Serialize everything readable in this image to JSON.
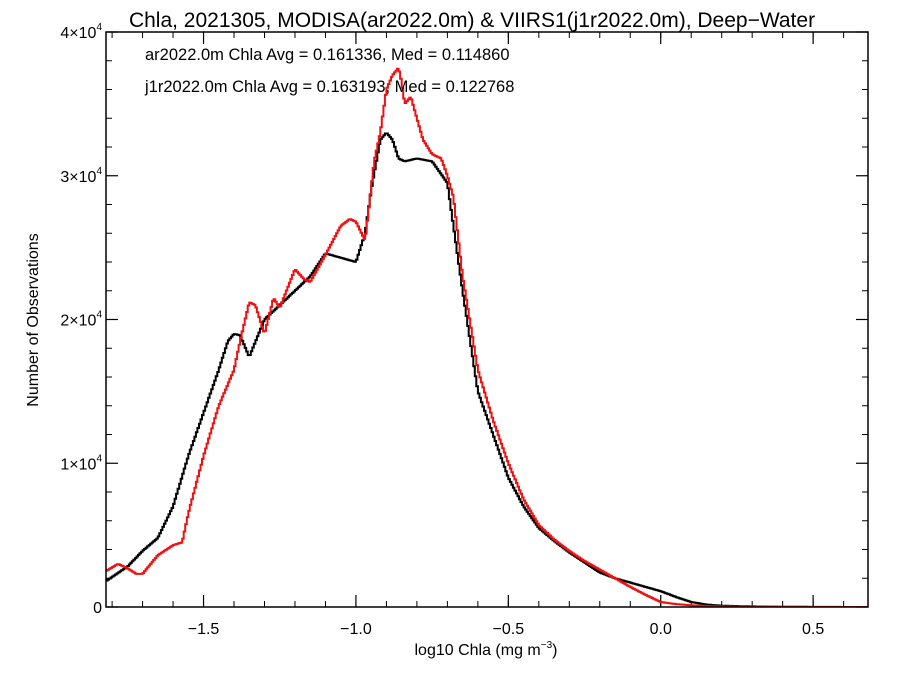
{
  "chart_data": {
    "type": "line",
    "title": "Chla, 2021305, MODISA(ar2022.0m) & VIIRS1(j1r2022.0m), Deep−Water",
    "xlabel": "log10 Chla (mg m",
    "xlabel_sup": "−3",
    "xlabel_tail": ")",
    "ylabel": "Number of Observations",
    "xlim": [
      -1.82,
      0.68
    ],
    "ylim": [
      0,
      40000
    ],
    "x_ticks": [
      {
        "value": -1.5,
        "label": "−1.5"
      },
      {
        "value": -1.0,
        "label": "−1.0"
      },
      {
        "value": -0.5,
        "label": "−0.5"
      },
      {
        "value": 0.0,
        "label": "0.0"
      },
      {
        "value": 0.5,
        "label": "0.5"
      }
    ],
    "y_ticks": [
      {
        "value": 0,
        "label": "0",
        "sup": ""
      },
      {
        "value": 10000,
        "label": "1×10",
        "sup": "4"
      },
      {
        "value": 20000,
        "label": "2×10",
        "sup": "4"
      },
      {
        "value": 30000,
        "label": "3×10",
        "sup": "4"
      },
      {
        "value": 40000,
        "label": "4×10",
        "sup": "4"
      }
    ],
    "series": [
      {
        "name": "ar2022.0m",
        "color": "#000000",
        "annotation": "ar2022.0m Chla Avg = 0.161336, Med = 0.114860",
        "x": [
          -1.82,
          -1.75,
          -1.7,
          -1.65,
          -1.6,
          -1.55,
          -1.5,
          -1.45,
          -1.42,
          -1.4,
          -1.38,
          -1.35,
          -1.3,
          -1.25,
          -1.2,
          -1.15,
          -1.1,
          -1.05,
          -1.0,
          -0.97,
          -0.95,
          -0.92,
          -0.9,
          -0.88,
          -0.86,
          -0.84,
          -0.82,
          -0.8,
          -0.75,
          -0.7,
          -0.65,
          -0.6,
          -0.55,
          -0.5,
          -0.45,
          -0.4,
          -0.35,
          -0.3,
          -0.25,
          -0.2,
          -0.15,
          -0.1,
          -0.05,
          0.0,
          0.05,
          0.1,
          0.15,
          0.2,
          0.3,
          0.4,
          0.5,
          0.6,
          0.68
        ],
        "y": [
          1800,
          2800,
          3900,
          4800,
          7000,
          10500,
          13500,
          16500,
          18500,
          19000,
          18900,
          17400,
          20000,
          21000,
          22000,
          23000,
          24600,
          24300,
          24000,
          26000,
          29000,
          32500,
          33000,
          32500,
          31200,
          31000,
          31100,
          31200,
          31000,
          29500,
          22000,
          15000,
          12000,
          9000,
          7000,
          5500,
          4600,
          3800,
          3100,
          2400,
          2000,
          1700,
          1400,
          1100,
          700,
          350,
          170,
          90,
          40,
          20,
          8,
          3,
          0
        ]
      },
      {
        "name": "j1r2022.0m",
        "color": "#ee1111",
        "annotation": "j1r2022.0m Chla Avg = 0.163193, Med = 0.122768",
        "x": [
          -1.82,
          -1.78,
          -1.75,
          -1.72,
          -1.7,
          -1.65,
          -1.6,
          -1.57,
          -1.55,
          -1.5,
          -1.45,
          -1.4,
          -1.38,
          -1.35,
          -1.33,
          -1.3,
          -1.27,
          -1.25,
          -1.2,
          -1.17,
          -1.15,
          -1.1,
          -1.05,
          -1.02,
          -1.0,
          -0.97,
          -0.94,
          -0.92,
          -0.9,
          -0.88,
          -0.86,
          -0.85,
          -0.84,
          -0.82,
          -0.8,
          -0.78,
          -0.75,
          -0.72,
          -0.7,
          -0.68,
          -0.65,
          -0.6,
          -0.55,
          -0.5,
          -0.45,
          -0.4,
          -0.35,
          -0.3,
          -0.25,
          -0.2,
          -0.15,
          -0.1,
          -0.05,
          0.0,
          0.05,
          0.1,
          0.15,
          0.2,
          0.3,
          0.4,
          0.5,
          0.6,
          0.68
        ],
        "y": [
          2500,
          3000,
          2700,
          2300,
          2300,
          3600,
          4300,
          4500,
          6500,
          10500,
          14000,
          16500,
          18500,
          21200,
          21000,
          19000,
          21500,
          20800,
          23500,
          22800,
          22600,
          24500,
          26500,
          27000,
          26800,
          25500,
          31000,
          33000,
          36000,
          37000,
          37500,
          36500,
          35000,
          35500,
          34000,
          32500,
          31500,
          31200,
          30000,
          28500,
          23000,
          16500,
          13000,
          10000,
          7500,
          5700,
          4700,
          3900,
          3200,
          2600,
          2000,
          1400,
          850,
          350,
          200,
          120,
          70,
          40,
          15,
          8,
          3,
          1,
          0
        ]
      }
    ]
  }
}
